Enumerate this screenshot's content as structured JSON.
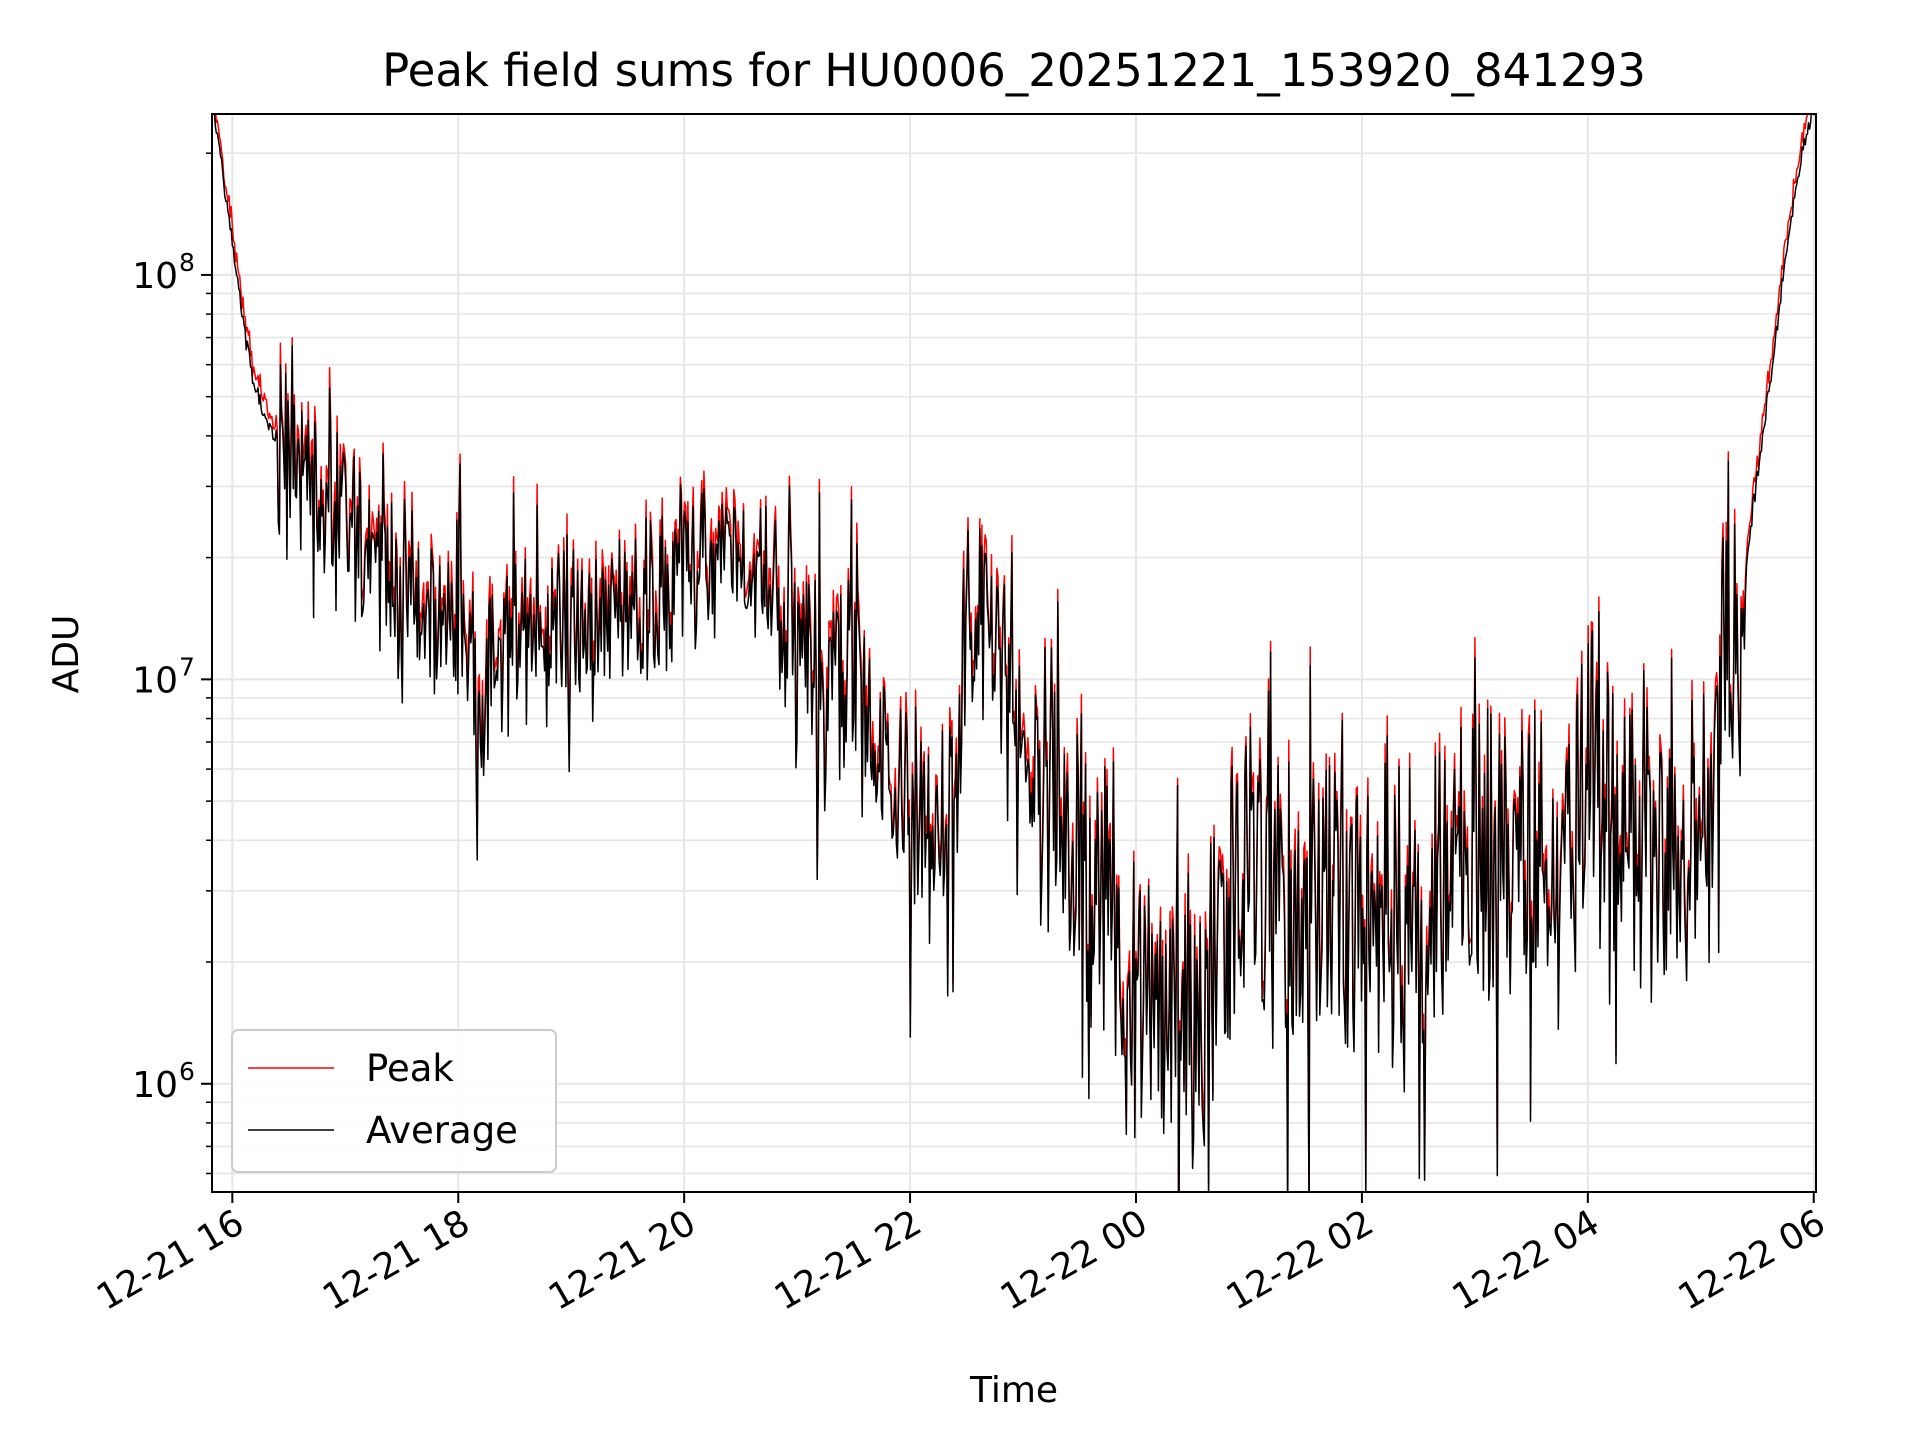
{
  "chart_data": {
    "type": "line",
    "title": "Peak field sums for HU0006_20251221_153920_841293",
    "xlabel": "Time",
    "ylabel": "ADU",
    "yscale": "log",
    "ylim": [
      540000,
      250000000
    ],
    "xlim_hours": [
      15.82,
      30.02
    ],
    "x_ticks": [
      {
        "hour": 16,
        "label": "12-21 16"
      },
      {
        "hour": 18,
        "label": "12-21 18"
      },
      {
        "hour": 20,
        "label": "12-21 20"
      },
      {
        "hour": 22,
        "label": "12-21 22"
      },
      {
        "hour": 24,
        "label": "12-22 00"
      },
      {
        "hour": 26,
        "label": "12-22 02"
      },
      {
        "hour": 28,
        "label": "12-22 04"
      },
      {
        "hour": 30,
        "label": "12-22 06"
      }
    ],
    "y_ticks": [
      {
        "value": 1000000,
        "base": "10",
        "exp": "6"
      },
      {
        "value": 10000000,
        "base": "10",
        "exp": "7"
      },
      {
        "value": 100000000,
        "base": "10",
        "exp": "8"
      }
    ],
    "grid": true,
    "legend_position": "lower-left",
    "series": [
      {
        "name": "Peak",
        "color": "#ff0000"
      },
      {
        "name": "Average",
        "color": "#000000"
      }
    ],
    "envelope_points": [
      [
        15.82,
        280000000
      ],
      [
        15.9,
        190000000
      ],
      [
        16.0,
        120000000
      ],
      [
        16.1,
        75000000
      ],
      [
        16.2,
        52000000
      ],
      [
        16.3,
        43000000
      ],
      [
        16.5,
        35000000
      ],
      [
        16.7,
        32000000
      ],
      [
        16.9,
        25000000
      ],
      [
        17.2,
        20000000
      ],
      [
        17.5,
        17000000
      ],
      [
        17.7,
        14000000
      ],
      [
        18.0,
        15000000
      ],
      [
        18.2,
        9000000
      ],
      [
        18.4,
        12000000
      ],
      [
        18.7,
        14000000
      ],
      [
        19.0,
        13000000
      ],
      [
        19.5,
        15000000
      ],
      [
        19.8,
        16000000
      ],
      [
        20.0,
        20000000
      ],
      [
        20.3,
        19000000
      ],
      [
        20.6,
        19000000
      ],
      [
        20.8,
        15000000
      ],
      [
        21.0,
        11500000
      ],
      [
        21.3,
        11000000
      ],
      [
        21.6,
        8500000
      ],
      [
        21.8,
        6000000
      ],
      [
        22.1,
        4300000
      ],
      [
        22.4,
        4500000
      ],
      [
        22.5,
        13000000
      ],
      [
        22.8,
        13000000
      ],
      [
        23.0,
        8000000
      ],
      [
        23.3,
        5000000
      ],
      [
        23.6,
        3000000
      ],
      [
        23.9,
        2000000
      ],
      [
        24.2,
        1400000
      ],
      [
        24.5,
        1300000
      ],
      [
        24.8,
        2200000
      ],
      [
        25.0,
        3000000
      ],
      [
        25.3,
        2800000
      ],
      [
        25.6,
        2600000
      ],
      [
        25.9,
        2700000
      ],
      [
        26.2,
        2600000
      ],
      [
        26.5,
        2800000
      ],
      [
        26.8,
        2900000
      ],
      [
        27.0,
        3700000
      ],
      [
        27.3,
        4000000
      ],
      [
        27.6,
        3300000
      ],
      [
        27.8,
        4000000
      ],
      [
        28.0,
        5500000
      ],
      [
        28.2,
        5200000
      ],
      [
        28.4,
        4500000
      ],
      [
        28.7,
        3800000
      ],
      [
        29.0,
        4200000
      ],
      [
        29.1,
        6000000
      ],
      [
        29.2,
        9500000
      ],
      [
        29.35,
        15000000
      ],
      [
        29.45,
        25000000
      ],
      [
        29.55,
        40000000
      ],
      [
        29.65,
        65000000
      ],
      [
        29.75,
        110000000
      ],
      [
        29.85,
        170000000
      ],
      [
        29.95,
        230000000
      ],
      [
        30.02,
        280000000
      ]
    ]
  }
}
